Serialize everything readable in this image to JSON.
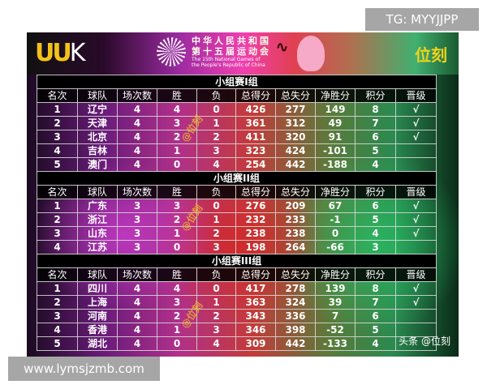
{
  "header": {
    "logo_left": "UUK",
    "games_cn_1": "中华人民共和国",
    "games_cn_2": "第十五届运动会",
    "games_en_1": "The 15th National Games of",
    "games_en_2": "the People's Republic of China",
    "brand": "位刻"
  },
  "columns": [
    "名次",
    "球队",
    "场次数",
    "胜",
    "负",
    "总得分",
    "总失分",
    "净胜分",
    "积分",
    "晋级"
  ],
  "groups": [
    {
      "title": "小组赛I组",
      "rows": [
        [
          "1",
          "辽宁",
          "4",
          "4",
          "0",
          "426",
          "277",
          "149",
          "8",
          "√"
        ],
        [
          "2",
          "天津",
          "4",
          "3",
          "1",
          "361",
          "312",
          "49",
          "7",
          "√"
        ],
        [
          "3",
          "北京",
          "4",
          "2",
          "2",
          "411",
          "320",
          "91",
          "6",
          "√"
        ],
        [
          "4",
          "吉林",
          "4",
          "1",
          "3",
          "323",
          "424",
          "-101",
          "5",
          ""
        ],
        [
          "5",
          "澳门",
          "4",
          "0",
          "4",
          "254",
          "442",
          "-188",
          "4",
          ""
        ]
      ]
    },
    {
      "title": "小组赛II组",
      "rows": [
        [
          "1",
          "广东",
          "3",
          "3",
          "0",
          "276",
          "209",
          "67",
          "6",
          "√"
        ],
        [
          "2",
          "浙江",
          "3",
          "2",
          "1",
          "232",
          "233",
          "-1",
          "5",
          "√"
        ],
        [
          "3",
          "山东",
          "3",
          "1",
          "2",
          "238",
          "238",
          "0",
          "4",
          "√"
        ],
        [
          "4",
          "江苏",
          "3",
          "0",
          "3",
          "198",
          "264",
          "-66",
          "3",
          ""
        ]
      ]
    },
    {
      "title": "小组赛III组",
      "rows": [
        [
          "1",
          "四川",
          "4",
          "4",
          "0",
          "417",
          "278",
          "139",
          "8",
          "√"
        ],
        [
          "2",
          "上海",
          "4",
          "3",
          "1",
          "363",
          "324",
          "39",
          "7",
          "√"
        ],
        [
          "3",
          "河南",
          "4",
          "2",
          "2",
          "343",
          "336",
          "7",
          "6",
          ""
        ],
        [
          "4",
          "香港",
          "4",
          "1",
          "3",
          "346",
          "398",
          "-52",
          "5",
          ""
        ],
        [
          "5",
          "湖北",
          "4",
          "0",
          "4",
          "309",
          "442",
          "-133",
          "4",
          ""
        ]
      ]
    }
  ],
  "watermarks": {
    "diagonal": "@位刻",
    "credit": "头条 @位刻",
    "tg": "TG: MYYJJPP",
    "site": "www.lymsjzmb.com"
  }
}
